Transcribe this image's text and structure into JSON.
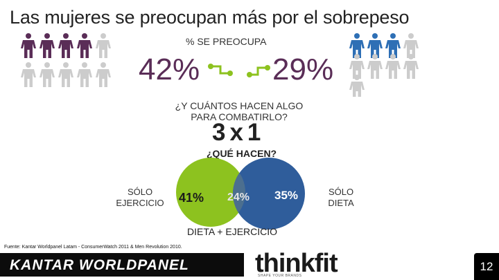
{
  "title": "Las mujeres se preocupan más por el sobrepeso",
  "worried_label": "% SE PREOCUPA",
  "women": {
    "percent": "42%",
    "figures_total": 10,
    "figures_highlighted": 4,
    "color": "#5a2d57",
    "muted_color": "#cccccc"
  },
  "men": {
    "percent": "29%",
    "figures_total": 9,
    "figures_highlighted": 3,
    "color": "#2e6fb5",
    "muted_color": "#cccccc"
  },
  "question_how_many": "¿Y CUÁNTOS HACEN ALGO PARA COMBATIRLO?",
  "ratio": "3x1",
  "question_what": "¿QUÉ HACEN?",
  "venn": {
    "exercise_label": "SÓLO EJERCICIO",
    "exercise_pct": "41%",
    "overlap_pct": "24%",
    "diet_pct": "35%",
    "diet_label": "SÓLO DIETA",
    "overlap_label": "DIETA + EJERCICIO",
    "exercise_color": "#8dc21f",
    "diet_color": "#2f5d9b",
    "overlap_color": "#4c6f8f"
  },
  "connector_color": "#8dc21f",
  "source": "Fuente: Kantar Worldpanel Latam - ConsumerWatch 2011 & Men Revolution 2010.",
  "footer": {
    "brand_left": "KANTAR WORLDPANEL",
    "brand_right": "thinkfit",
    "brand_right_tagline": "SHAPE YOUR BRANDS",
    "page_number": "12"
  }
}
